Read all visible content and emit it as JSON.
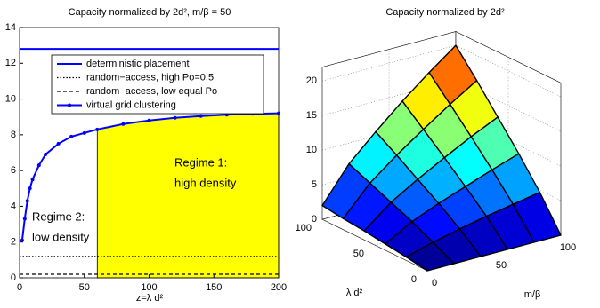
{
  "chart_data": [
    {
      "type": "line",
      "title": "Capacity normalized by 2d², m/β = 50",
      "x_label": "z=λ d²",
      "xlim": [
        0,
        200
      ],
      "xticks": [
        0,
        50,
        100,
        150,
        200
      ],
      "ylim": [
        0,
        14
      ],
      "yticks": [
        0,
        2,
        4,
        6,
        8,
        10,
        12,
        14
      ],
      "highlight_range": [
        60,
        200
      ],
      "highlight_color": "#ffff00",
      "annotations": [
        [
          "Regime 1:",
          "high density"
        ],
        [
          "Regime 2:",
          "low density"
        ]
      ],
      "series": [
        {
          "name": "deterministic placement",
          "color": "#0000ff",
          "style": "solid",
          "x": [
            0,
            200
          ],
          "values": [
            12.8,
            12.8
          ]
        },
        {
          "name": "random−access, high Po=0.5",
          "color": "#000000",
          "style": "dotted",
          "x": [
            0,
            200
          ],
          "values": [
            1.2,
            1.2
          ]
        },
        {
          "name": "random−access, low equal Po",
          "color": "#000000",
          "style": "dashed",
          "x": [
            0,
            200
          ],
          "values": [
            0.2,
            0.2
          ]
        },
        {
          "name": "virtual grid clustering",
          "color": "#0000ff",
          "style": "solid",
          "marker": "dot",
          "x": [
            2,
            4,
            6,
            8,
            10,
            15,
            20,
            30,
            40,
            50,
            60,
            80,
            100,
            120,
            140,
            160,
            180,
            200
          ],
          "values": [
            2.1,
            3.3,
            4.3,
            5.0,
            5.5,
            6.3,
            6.9,
            7.5,
            7.9,
            8.1,
            8.3,
            8.6,
            8.8,
            8.95,
            9.05,
            9.12,
            9.17,
            9.2
          ]
        }
      ]
    },
    {
      "type": "surface",
      "title": "Capacity normalized by 2d²",
      "x_label": "λ d²",
      "y_label": "m/β",
      "x": [
        0,
        20,
        40,
        60,
        80,
        100
      ],
      "y": [
        0,
        20,
        40,
        60,
        80,
        100
      ],
      "xlim": [
        0,
        100
      ],
      "xticks": [
        0,
        50,
        100
      ],
      "ylim": [
        0,
        100
      ],
      "yticks": [
        0,
        50,
        100
      ],
      "zlim": [
        0,
        22
      ],
      "zticks": [
        0,
        5,
        10,
        15,
        20
      ],
      "z": [
        [
          0,
          0,
          0,
          0,
          0,
          0
        ],
        [
          0.5,
          1.6,
          2.5,
          3.3,
          4.0,
          4.7
        ],
        [
          0.9,
          3.1,
          4.7,
          6.1,
          7.5,
          8.8
        ],
        [
          1.3,
          4.4,
          6.7,
          8.8,
          10.8,
          12.6
        ],
        [
          1.6,
          5.7,
          8.7,
          11.4,
          14.0,
          16.4
        ],
        [
          2.0,
          7.0,
          10.6,
          14.0,
          17.1,
          20.0
        ]
      ]
    }
  ]
}
